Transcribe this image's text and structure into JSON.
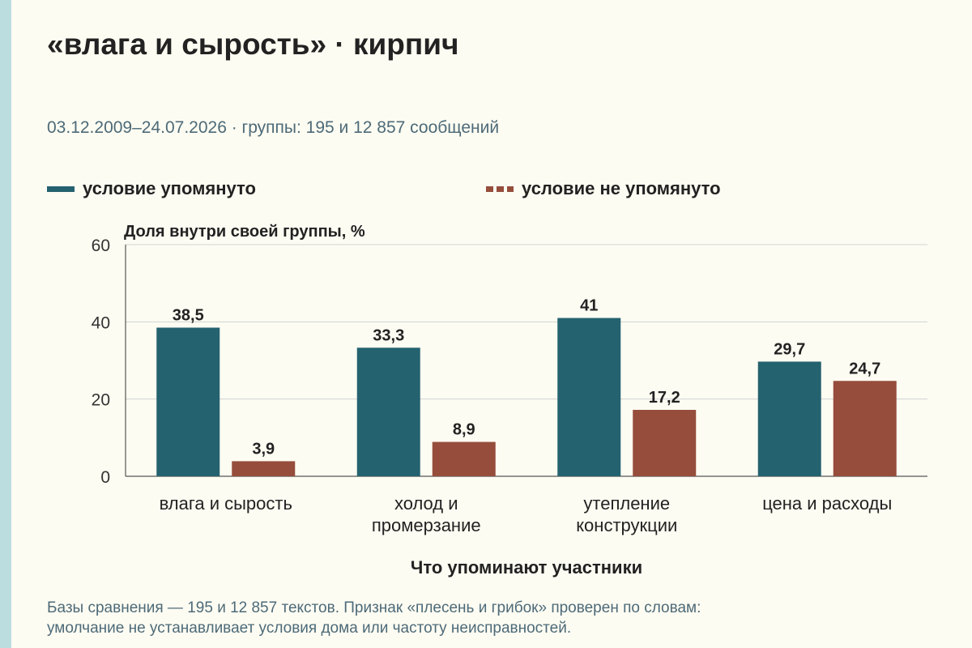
{
  "title": "«влага и сырость» · кирпич",
  "subtitle": "03.12.2009–24.07.2026 · группы: 195 и 12 857 сообщений",
  "footnote": {
    "line1": "Базы сравнения — 195 и 12 857 текстов. Признак «плесень и грибок» проверен по словам:",
    "line2": "умолчание не устанавливает условия дома или частоту неисправностей."
  },
  "colors": {
    "accent": "#256270",
    "secondary": "#964d3c",
    "background": "#fdfcf2",
    "strip": "#bcdde0"
  },
  "chart_data": {
    "type": "bar",
    "categories": [
      [
        "влага и сырость"
      ],
      [
        "холод и",
        "промерзание"
      ],
      [
        "утепление",
        "конструкции"
      ],
      [
        "цена и расходы"
      ]
    ],
    "series": [
      {
        "name": "условие упомянуто",
        "values": [
          38.5,
          33.3,
          41,
          29.7
        ],
        "labels": [
          "38,5",
          "33,3",
          "41",
          "29,7"
        ],
        "color": "#256270"
      },
      {
        "name": "условие не упомянуто",
        "values": [
          3.9,
          8.9,
          17.2,
          24.7
        ],
        "labels": [
          "3,9",
          "8,9",
          "17,2",
          "24,7"
        ],
        "color": "#964d3c"
      }
    ],
    "ylabel": "Доля внутри своей группы, %",
    "xlabel": "Что упоминают участники",
    "ylim": [
      0,
      60
    ],
    "yticks": [
      0,
      20,
      40,
      60
    ],
    "grid": true,
    "legend": "top-left"
  }
}
